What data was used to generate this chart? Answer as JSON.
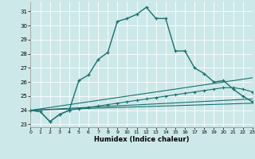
{
  "xlabel": "Humidex (Indice chaleur)",
  "xlim": [
    0,
    23
  ],
  "ylim": [
    22.8,
    31.7
  ],
  "yticks": [
    23,
    24,
    25,
    26,
    27,
    28,
    29,
    30,
    31
  ],
  "xticks": [
    0,
    1,
    2,
    3,
    4,
    5,
    6,
    7,
    8,
    9,
    10,
    11,
    12,
    13,
    14,
    15,
    16,
    17,
    18,
    19,
    20,
    21,
    22,
    23
  ],
  "bg_color": "#cde8e8",
  "grid_color": "#ffffff",
  "line_color": "#1a7070",
  "main_x": [
    0,
    1,
    2,
    3,
    4,
    5,
    6,
    7,
    8,
    9,
    10,
    11,
    12,
    13,
    14,
    15,
    16,
    17,
    18,
    19,
    20,
    21,
    22,
    23
  ],
  "main_y": [
    24.0,
    23.9,
    23.2,
    23.7,
    24.0,
    26.1,
    26.5,
    27.6,
    28.1,
    30.3,
    30.5,
    30.8,
    31.3,
    30.5,
    30.5,
    28.2,
    28.2,
    27.0,
    26.6,
    26.0,
    26.1,
    25.5,
    25.0,
    24.6
  ],
  "line2_x": [
    0,
    23
  ],
  "line2_y": [
    24.0,
    24.5
  ],
  "line3_x": [
    0,
    23
  ],
  "line3_y": [
    24.0,
    24.8
  ],
  "line4_x": [
    0,
    23
  ],
  "line4_y": [
    24.0,
    26.3
  ],
  "line5_x": [
    0,
    1,
    2,
    3,
    4,
    5,
    6,
    7,
    8,
    9,
    10,
    11,
    12,
    13,
    14,
    15,
    16,
    17,
    18,
    19,
    20,
    21,
    22,
    23
  ],
  "line5_y": [
    24.0,
    23.9,
    23.2,
    23.7,
    24.0,
    24.1,
    24.2,
    24.3,
    24.4,
    24.5,
    24.6,
    24.7,
    24.8,
    24.9,
    25.0,
    25.1,
    25.2,
    25.3,
    25.4,
    25.5,
    25.6,
    25.6,
    25.5,
    25.3
  ]
}
